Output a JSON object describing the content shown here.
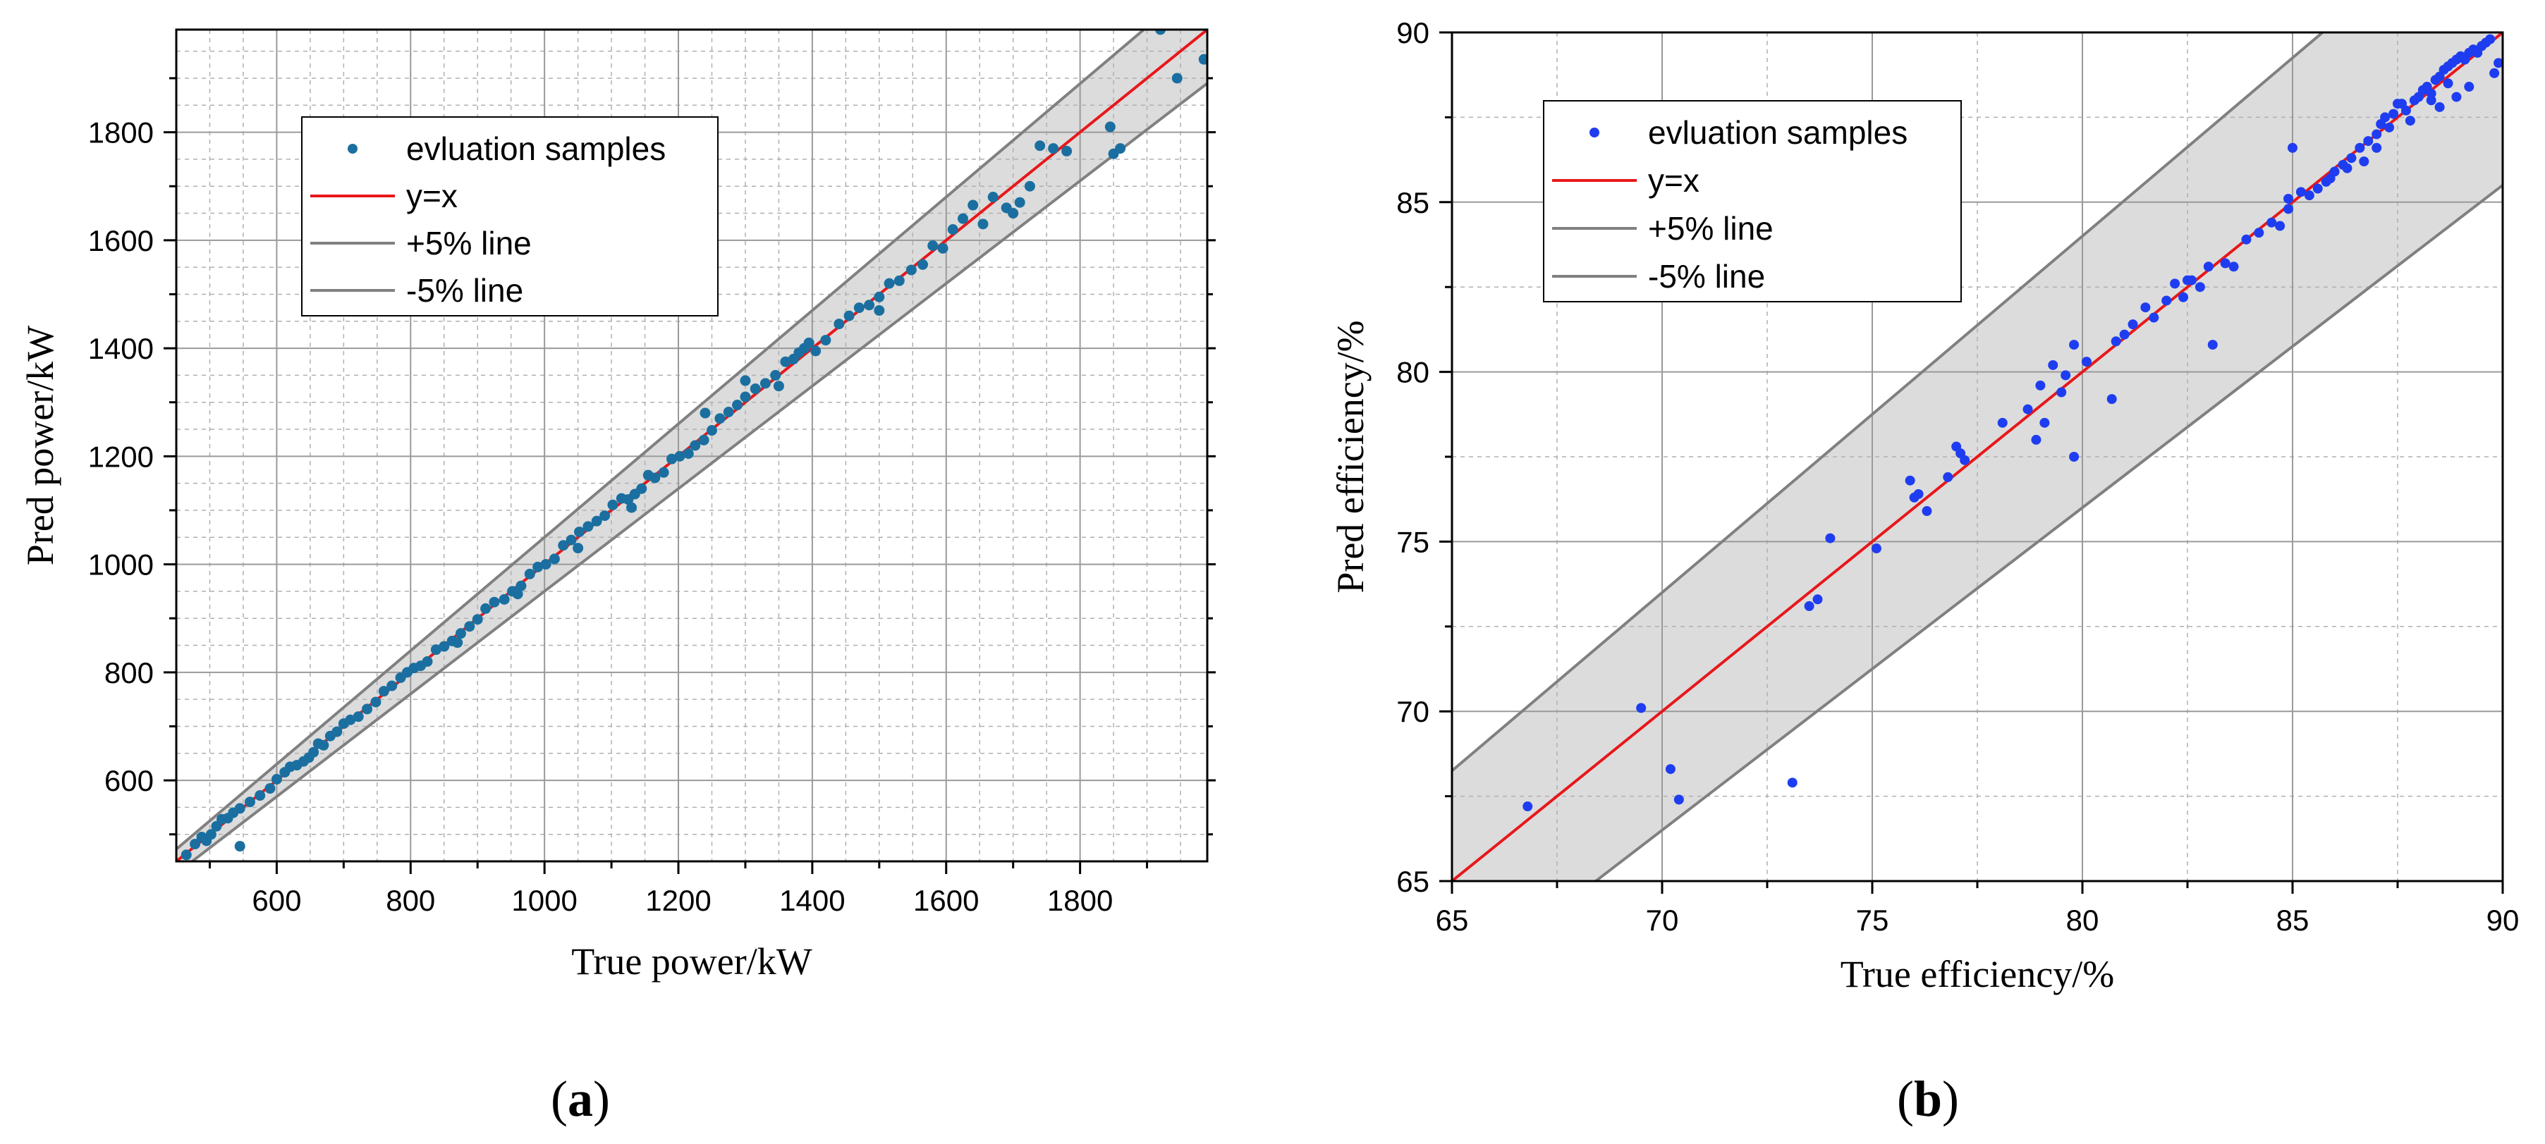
{
  "chart_data": [
    {
      "type": "scatter",
      "panel": "(a)",
      "panel_open": "(",
      "panel_letter": "a",
      "panel_close": ")",
      "xlabel": "True power/kW",
      "ylabel": "Pred power/kW",
      "xlim": [
        450,
        1990
      ],
      "ylim": [
        450,
        1990
      ],
      "xticks": [
        600,
        800,
        1000,
        1200,
        1400,
        1600,
        1800
      ],
      "yticks": [
        600,
        800,
        1000,
        1200,
        1400,
        1600,
        1800
      ],
      "legend": {
        "placement": "top-left",
        "entries": [
          "evluation samples",
          "y=x",
          "+5% line",
          "-5% line"
        ]
      },
      "band_percent": 5,
      "colors": {
        "samples": "#1a6fa0",
        "identity": "#e8171a",
        "band_line": "#808080",
        "band_fill": "#dcdcdc"
      },
      "series": [
        {
          "name": "evluation samples",
          "x": [
            465,
            478,
            488,
            495,
            502,
            510,
            518,
            527,
            535,
            545,
            560,
            575,
            590,
            600,
            612,
            620,
            630,
            640,
            648,
            655,
            662,
            670,
            680,
            690,
            700,
            710,
            722,
            735,
            748,
            760,
            772,
            785,
            795,
            805,
            815,
            825,
            838,
            850,
            862,
            875,
            888,
            900,
            912,
            925,
            940,
            952,
            965,
            978,
            990,
            1002,
            1015,
            1028,
            1040,
            1052,
            1065,
            1078,
            1090,
            1102,
            1115,
            1125,
            1135,
            1145,
            1155,
            1165,
            1178,
            1190,
            1202,
            1215,
            1225,
            1238,
            1250,
            1262,
            1275,
            1288,
            1300,
            1315,
            1330,
            1345,
            1360,
            1372,
            1380,
            1388,
            1395,
            1405,
            1420,
            1440,
            1455,
            1470,
            1485,
            1500,
            1515,
            1530,
            1548,
            1565,
            1580,
            1595,
            1610,
            1625,
            1640,
            1655,
            1670,
            1690,
            1710,
            1725,
            1740,
            1760,
            1780,
            1845,
            1850,
            1860,
            1920,
            1945,
            1985,
            545,
            1300,
            1240,
            1130,
            960,
            870,
            1050,
            1350,
            1500,
            1700
          ],
          "y": [
            462,
            482,
            495,
            488,
            500,
            515,
            528,
            530,
            540,
            548,
            560,
            572,
            585,
            602,
            615,
            625,
            628,
            635,
            642,
            652,
            668,
            665,
            682,
            690,
            705,
            712,
            718,
            732,
            745,
            765,
            775,
            790,
            800,
            808,
            812,
            820,
            842,
            848,
            858,
            872,
            885,
            898,
            918,
            930,
            935,
            950,
            960,
            982,
            995,
            1000,
            1010,
            1035,
            1045,
            1060,
            1070,
            1080,
            1090,
            1110,
            1122,
            1120,
            1130,
            1140,
            1165,
            1160,
            1170,
            1195,
            1200,
            1205,
            1220,
            1230,
            1248,
            1270,
            1282,
            1295,
            1310,
            1325,
            1335,
            1350,
            1375,
            1380,
            1392,
            1400,
            1410,
            1395,
            1415,
            1445,
            1460,
            1475,
            1480,
            1495,
            1520,
            1525,
            1545,
            1555,
            1590,
            1585,
            1620,
            1640,
            1665,
            1630,
            1680,
            1660,
            1670,
            1700,
            1775,
            1770,
            1765,
            1810,
            1760,
            1770,
            1990,
            1900,
            1935,
            478,
            1340,
            1280,
            1105,
            945,
            855,
            1030,
            1330,
            1470,
            1650
          ]
        }
      ]
    },
    {
      "type": "scatter",
      "panel": "(b)",
      "panel_open": "(",
      "panel_letter": "b",
      "panel_close": ")",
      "xlabel": "True efficiency/%",
      "ylabel": "Pred efficiency/%",
      "xlim": [
        65,
        90
      ],
      "ylim": [
        65,
        90
      ],
      "xticks": [
        65,
        70,
        75,
        80,
        85,
        90
      ],
      "yticks": [
        65,
        70,
        75,
        80,
        85,
        90
      ],
      "legend": {
        "placement": "top-left",
        "entries": [
          "evluation samples",
          "y=x",
          "+5% line",
          "-5% line"
        ]
      },
      "band_percent": 5,
      "colors": {
        "samples": "#1f3df0",
        "identity": "#e8171a",
        "band_line": "#808080",
        "band_fill": "#dcdcdc"
      },
      "series": [
        {
          "name": "evluation samples",
          "x": [
            66.8,
            69.5,
            70.2,
            70.4,
            73.1,
            73.5,
            73.7,
            74.0,
            75.1,
            75.9,
            76.0,
            76.1,
            76.3,
            76.8,
            77.0,
            77.1,
            77.2,
            78.1,
            78.7,
            78.9,
            79.0,
            79.1,
            79.3,
            79.5,
            79.6,
            79.8,
            79.8,
            80.1,
            80.7,
            80.8,
            81.0,
            81.2,
            81.5,
            81.7,
            82.0,
            82.2,
            82.4,
            82.6,
            82.8,
            83.0,
            83.1,
            83.4,
            83.6,
            83.9,
            84.2,
            84.5,
            84.7,
            84.9,
            85.0,
            85.2,
            85.4,
            85.6,
            85.8,
            86.0,
            86.2,
            86.4,
            86.6,
            86.8,
            87.0,
            87.1,
            87.2,
            87.4,
            87.6,
            87.7,
            87.9,
            88.0,
            88.1,
            88.2,
            88.3,
            88.4,
            88.5,
            88.6,
            88.7,
            88.8,
            88.9,
            89.0,
            89.1,
            89.2,
            89.3,
            89.4,
            89.5,
            89.6,
            89.7,
            89.8,
            89.9,
            89.5,
            89.2,
            88.9,
            88.7,
            88.5,
            88.3,
            87.8,
            87.5,
            87.3,
            87.0,
            86.7,
            86.3,
            85.9,
            84.9,
            82.5
          ],
          "y": [
            67.2,
            70.1,
            68.3,
            67.4,
            67.9,
            73.1,
            73.3,
            75.1,
            74.8,
            76.8,
            76.3,
            76.4,
            75.9,
            76.9,
            77.8,
            77.6,
            77.4,
            78.5,
            78.9,
            78.0,
            79.6,
            78.5,
            80.2,
            79.4,
            79.9,
            80.8,
            77.5,
            80.3,
            79.2,
            80.9,
            81.1,
            81.4,
            81.9,
            81.6,
            82.1,
            82.6,
            82.2,
            82.7,
            82.5,
            83.1,
            80.8,
            83.2,
            83.1,
            83.9,
            84.1,
            84.4,
            84.3,
            84.8,
            86.6,
            85.3,
            85.2,
            85.4,
            85.6,
            85.9,
            86.1,
            86.3,
            86.6,
            86.8,
            87.0,
            87.3,
            87.5,
            87.6,
            87.9,
            87.7,
            88.0,
            88.1,
            88.3,
            88.4,
            88.2,
            88.6,
            88.7,
            88.9,
            89.0,
            89.1,
            89.2,
            89.3,
            89.2,
            89.4,
            89.5,
            89.4,
            89.6,
            89.7,
            89.8,
            88.8,
            89.1,
            89.6,
            88.4,
            88.1,
            88.5,
            87.8,
            88.0,
            87.4,
            87.9,
            87.2,
            86.6,
            86.2,
            86.0,
            85.7,
            85.1,
            82.7
          ]
        }
      ]
    }
  ]
}
